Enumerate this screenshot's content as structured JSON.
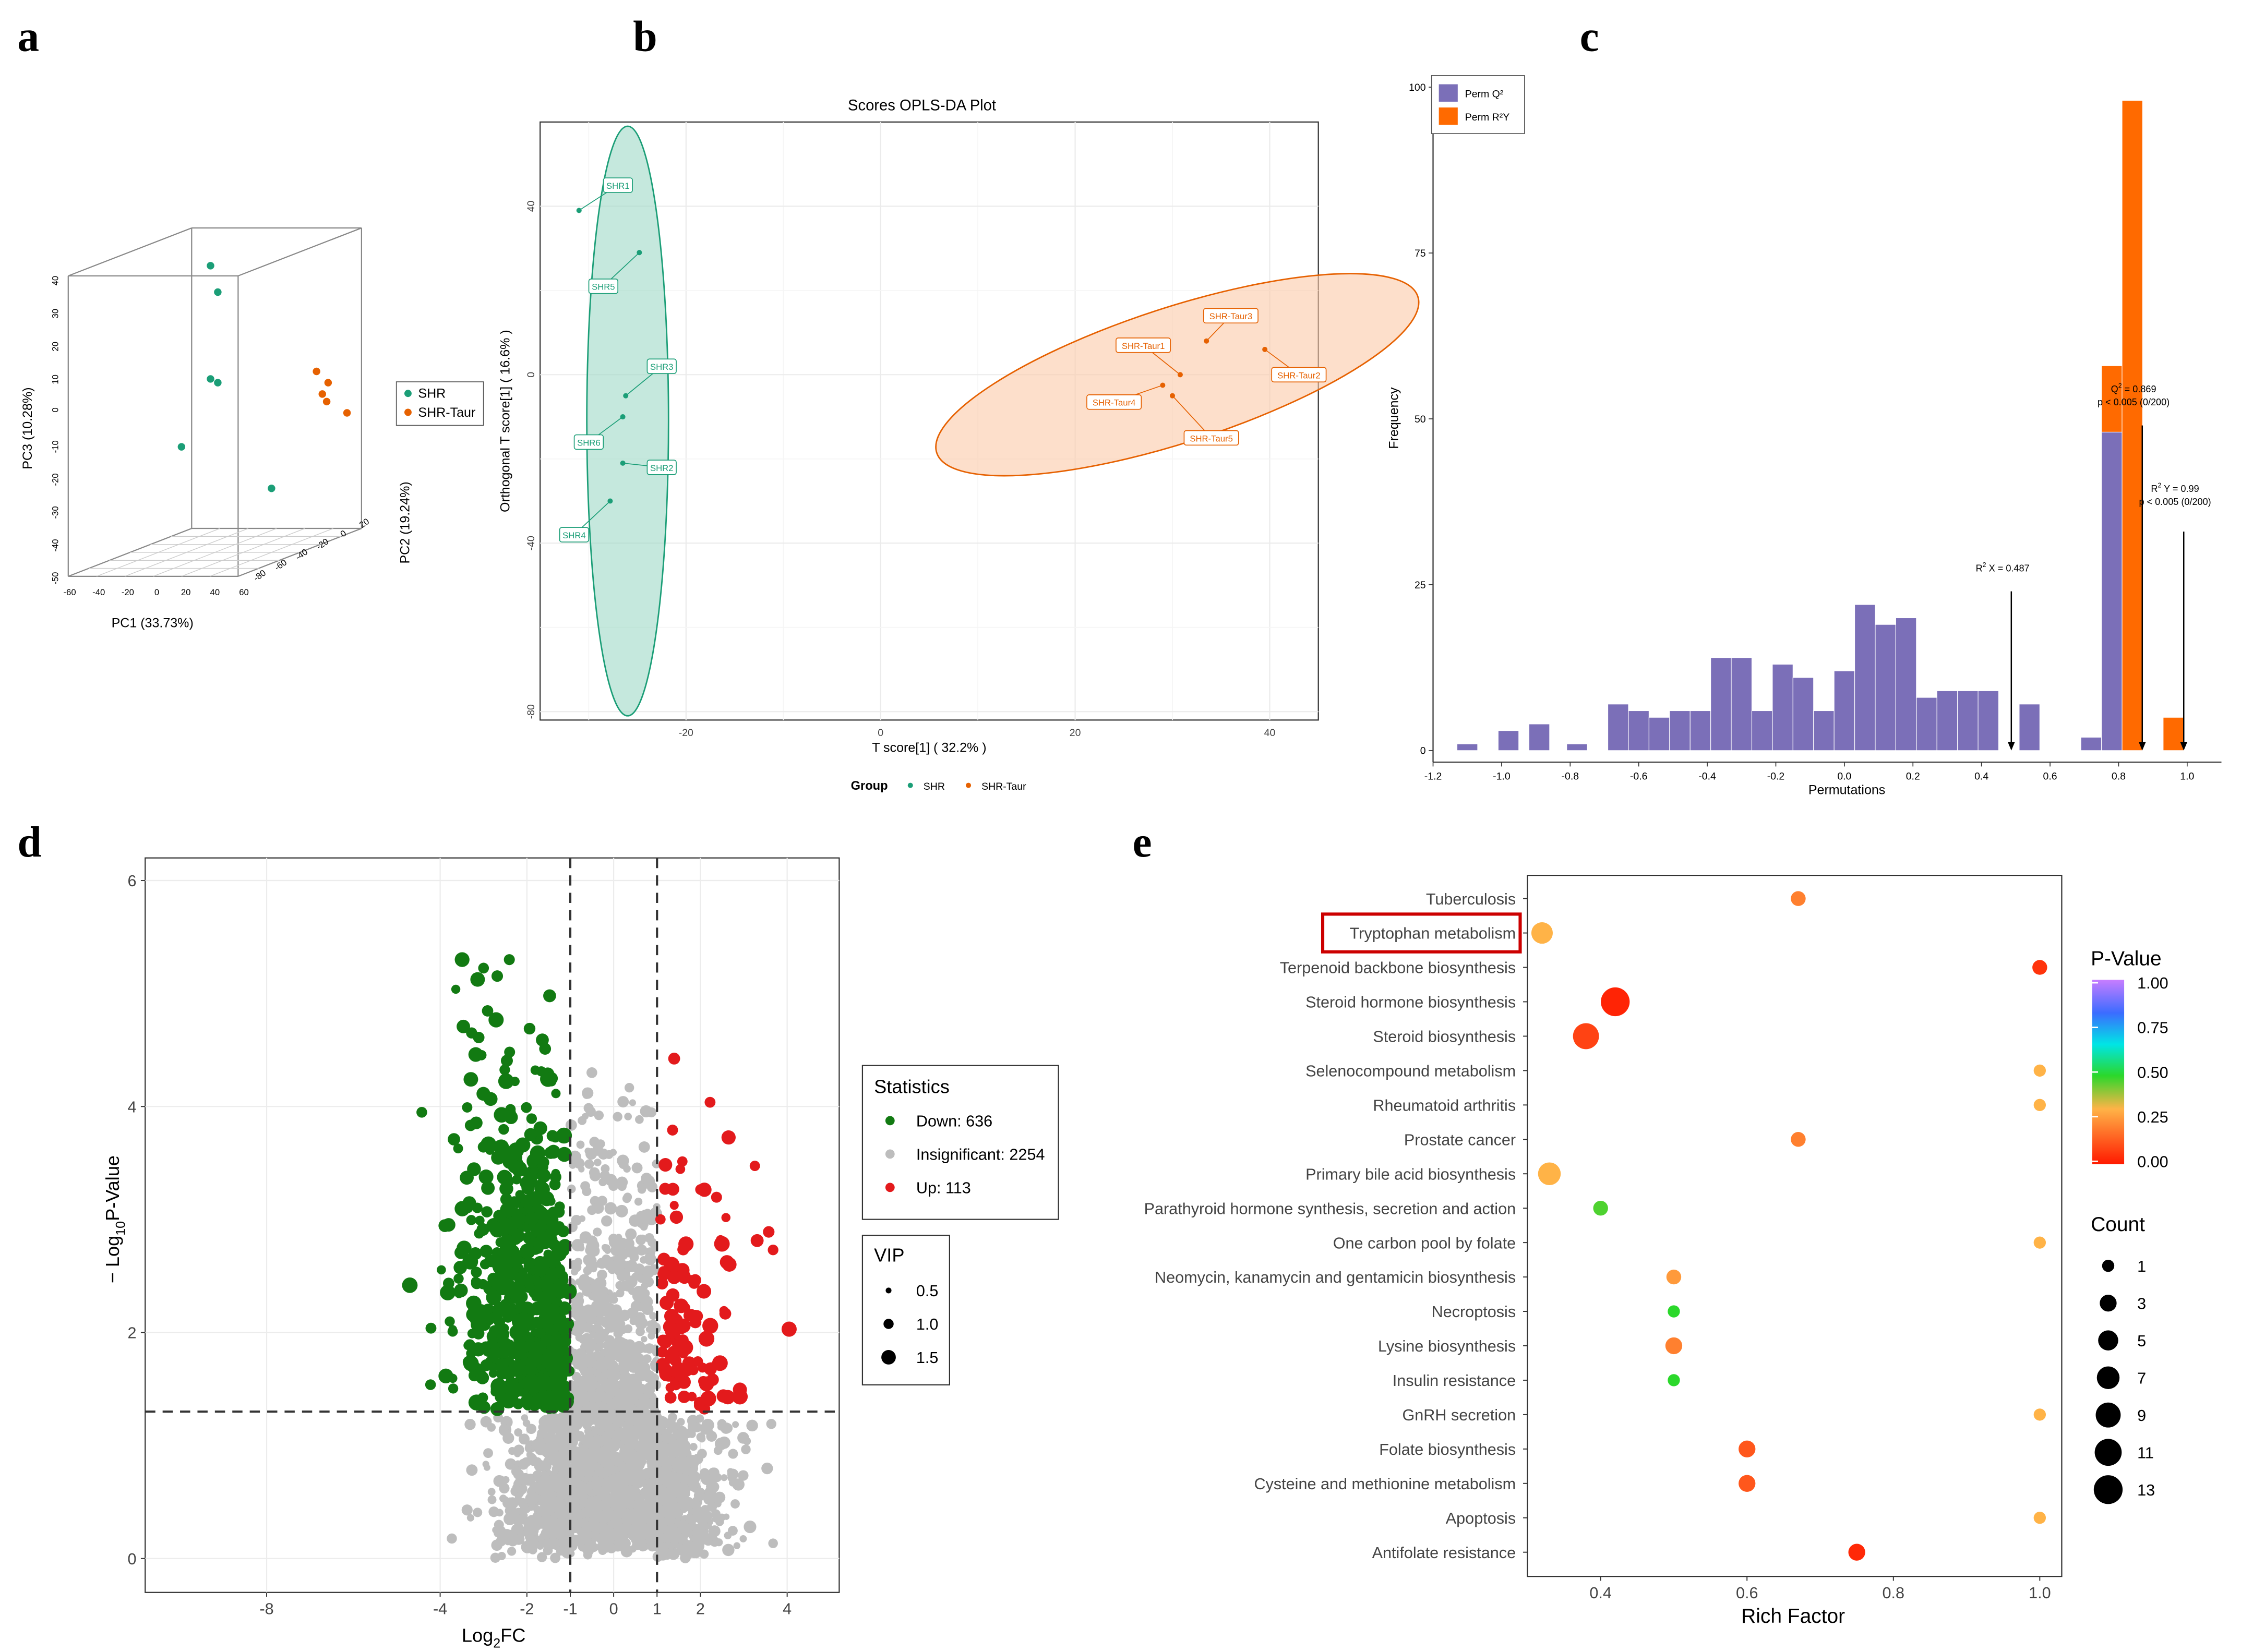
{
  "panel_labels": [
    "a",
    "b",
    "c",
    "d",
    "e"
  ],
  "chart_data": [
    {
      "id": "a",
      "type": "scatter",
      "subtype": "3d-pca",
      "xlabel": "PC1 (33.73%)",
      "ylabel": "PC3 (10.28%)",
      "zlabel": "PC2 (19.24%)",
      "x_ticks": [
        "-60",
        "-40",
        "-20",
        "0",
        "20",
        "40",
        "60"
      ],
      "y_ticks": [
        "40",
        "30",
        "20",
        "10",
        "0",
        "-10",
        "-20",
        "-30",
        "-40",
        "-50"
      ],
      "z_ticks": [
        "-80",
        "-60",
        "-40",
        "-20",
        "0",
        "20"
      ],
      "legend": [
        {
          "label": "SHR",
          "color": "#1b9e77"
        },
        {
          "label": "SHR-Taur",
          "color": "#e66101"
        }
      ],
      "series": [
        {
          "name": "SHR",
          "color": "#1b9e77",
          "points": [
            [
              145,
              45
            ],
            [
              150,
              38
            ],
            [
              145,
              15
            ],
            [
              150,
              14
            ],
            [
              125,
              -3
            ],
            [
              187,
              -14
            ]
          ]
        },
        {
          "name": "SHR-Taur",
          "color": "#e66101",
          "points": [
            [
              218,
              17
            ],
            [
              226,
              14
            ],
            [
              222,
              11
            ],
            [
              225,
              9
            ],
            [
              239,
              6
            ]
          ]
        }
      ]
    },
    {
      "id": "b",
      "type": "scatter",
      "title": "Scores OPLS-DA Plot",
      "xlabel": "T score[1] ( 32.2% )",
      "ylabel": "Orthogonal T score[1] ( 16.6% )",
      "xlim": [
        -35,
        45
      ],
      "ylim": [
        -82,
        60
      ],
      "x_ticks": [
        -20,
        0,
        20,
        40
      ],
      "y_ticks": [
        -80,
        -40,
        0,
        40
      ],
      "legend_title": "Group",
      "legend": [
        {
          "label": "SHR",
          "color": "#1b9e77"
        },
        {
          "label": "SHR-Taur",
          "color": "#e66101"
        }
      ],
      "series": [
        {
          "name": "SHR",
          "color": "#1b9e77",
          "ellipse": {
            "cx": -26,
            "cy": -11,
            "rx": 4.2,
            "ry": 70
          },
          "points": [
            {
              "x": -31,
              "y": 39,
              "label": "SHR1",
              "lx": -27,
              "ly": 45
            },
            {
              "x": -24.8,
              "y": 29,
              "label": "SHR5",
              "lx": -28.5,
              "ly": 21
            },
            {
              "x": -26.2,
              "y": -5,
              "label": "SHR3",
              "lx": -22.5,
              "ly": 2
            },
            {
              "x": -26.5,
              "y": -10,
              "label": "SHR6",
              "lx": -30,
              "ly": -16
            },
            {
              "x": -26.5,
              "y": -21,
              "label": "SHR2",
              "lx": -22.5,
              "ly": -22
            },
            {
              "x": -27.8,
              "y": -30,
              "label": "SHR4",
              "lx": -31.5,
              "ly": -38
            }
          ]
        },
        {
          "name": "SHR-Taur",
          "color": "#e66101",
          "ellipse": {
            "cx": 30.5,
            "cy": 0,
            "rx": 26,
            "ry": 16,
            "angle": -18
          },
          "points": [
            {
              "x": 33.5,
              "y": 8,
              "label": "SHR-Taur3",
              "lx": 36,
              "ly": 14
            },
            {
              "x": 39.5,
              "y": 6,
              "label": "SHR-Taur2",
              "lx": 43,
              "ly": 0
            },
            {
              "x": 30.8,
              "y": 0,
              "label": "SHR-Taur1",
              "lx": 27,
              "ly": 7
            },
            {
              "x": 29,
              "y": -2.5,
              "label": "SHR-Taur4",
              "lx": 24,
              "ly": -6.5
            },
            {
              "x": 30,
              "y": -5,
              "label": "SHR-Taur5",
              "lx": 34,
              "ly": -15
            }
          ]
        }
      ]
    },
    {
      "id": "c",
      "type": "bar",
      "subtype": "histogram",
      "xlabel": "Permutations",
      "ylabel": "Frequency",
      "xlim": [
        -1.2,
        1.1
      ],
      "ylim": [
        0,
        100
      ],
      "x_ticks": [
        "-1.2",
        "-1.0",
        "-0.8",
        "-0.6",
        "-0.4",
        "-0.2",
        "0.0",
        "0.2",
        "0.4",
        "0.6",
        "0.8",
        "1.0"
      ],
      "y_ticks": [
        "0",
        "25",
        "50",
        "75",
        "100"
      ],
      "legend": [
        {
          "label": "Perm Q²",
          "color": "#7b6fb8"
        },
        {
          "label": "Perm R²Y",
          "color": "#ff6a00"
        }
      ],
      "bin_width": 0.06,
      "series": [
        {
          "name": "Perm Q²",
          "color": "#7b6fb8",
          "bins": [
            [
              -1.1,
              1
            ],
            [
              -0.98,
              3
            ],
            [
              -0.89,
              4
            ],
            [
              -0.78,
              1
            ],
            [
              -0.66,
              7
            ],
            [
              -0.6,
              6
            ],
            [
              -0.54,
              5
            ],
            [
              -0.48,
              6
            ],
            [
              -0.42,
              6
            ],
            [
              -0.36,
              14
            ],
            [
              -0.3,
              14
            ],
            [
              -0.24,
              6
            ],
            [
              -0.18,
              13
            ],
            [
              -0.12,
              11
            ],
            [
              -0.06,
              6
            ],
            [
              0.0,
              12
            ],
            [
              0.06,
              22
            ],
            [
              0.12,
              19
            ],
            [
              0.18,
              20
            ],
            [
              0.24,
              8
            ],
            [
              0.3,
              9
            ],
            [
              0.36,
              9
            ],
            [
              0.42,
              9
            ],
            [
              0.48,
              0
            ],
            [
              0.54,
              7
            ],
            [
              0.72,
              2
            ],
            [
              0.78,
              48
            ],
            [
              0.84,
              0
            ],
            [
              0.96,
              0
            ]
          ]
        },
        {
          "name": "Perm R²Y",
          "color": "#ff6a00",
          "bins": [
            [
              0.72,
              1
            ],
            [
              0.78,
              58
            ],
            [
              0.84,
              98
            ],
            [
              0.96,
              5
            ]
          ]
        }
      ],
      "annotations": [
        {
          "text_a": "R",
          "text_b": "2",
          "text_c": " X = 0.487",
          "x": 0.487,
          "y_label": 27,
          "arrow_top": 24
        },
        {
          "text_a": "Q",
          "text_b": "2",
          "text_c": " = 0.869",
          "sub": "p < 0.005 (0/200)",
          "x": 0.869,
          "y_label": 54,
          "arrow_top": 49
        },
        {
          "text_a": "R",
          "text_b": "2",
          "text_c": " Y = 0.99",
          "sub": "p < 0.005 (0/200)",
          "x": 0.99,
          "y_label": 39,
          "arrow_top": 33
        }
      ]
    },
    {
      "id": "d",
      "type": "scatter",
      "subtype": "volcano",
      "xlabel_a": "Log",
      "xlabel_b": "2",
      "xlabel_c": "FC",
      "ylabel_a": "− Log",
      "ylabel_b": "10",
      "ylabel_c": "P-Value",
      "xlim": [
        -10.8,
        5.2
      ],
      "ylim": [
        -0.3,
        6.2
      ],
      "x_ticks": [
        -8,
        -4,
        -2,
        -1,
        0,
        1,
        2,
        4
      ],
      "y_ticks": [
        0,
        2,
        4,
        6
      ],
      "thresholds": {
        "x": [
          -1,
          1
        ],
        "y": 1.3
      },
      "legend_title": "Statistics",
      "legend": [
        {
          "label": "Down: 636",
          "color": "#127a12"
        },
        {
          "label": "Insignificant: 2254",
          "color": "#bdbdbd"
        },
        {
          "label": "Up: 113",
          "color": "#e31a1c"
        }
      ],
      "size_legend_title": "VIP",
      "size_legend": [
        "0.5",
        "1.0",
        "1.5"
      ],
      "counts": {
        "down": 636,
        "insignificant": 2254,
        "up": 113
      }
    },
    {
      "id": "e",
      "type": "scatter",
      "subtype": "kegg-bubble",
      "xlabel": "Rich Factor",
      "xlim": [
        0.3,
        1.03
      ],
      "x_ticks": [
        0.4,
        0.6,
        0.8,
        1.0
      ],
      "highlight": "Tryptophan metabolism",
      "color_legend_title": "P-Value",
      "color_legend_ticks": [
        "1.00",
        "0.75",
        "0.50",
        "0.25",
        "0.00"
      ],
      "size_legend_title": "Count",
      "size_legend_ticks": [
        "1",
        "3",
        "5",
        "7",
        "9",
        "11",
        "13"
      ],
      "pathways": [
        {
          "name": "Tuberculosis",
          "rich": 0.67,
          "count": 2,
          "p": 0.2
        },
        {
          "name": "Tryptophan metabolism",
          "rich": 0.32,
          "count": 6,
          "p": 0.3
        },
        {
          "name": "Terpenoid backbone biosynthesis",
          "rich": 1.0,
          "count": 2,
          "p": 0.05
        },
        {
          "name": "Steroid hormone biosynthesis",
          "rich": 0.42,
          "count": 13,
          "p": 0.02
        },
        {
          "name": "Steroid biosynthesis",
          "rich": 0.38,
          "count": 10,
          "p": 0.08
        },
        {
          "name": "Selenocompound metabolism",
          "rich": 1.0,
          "count": 1,
          "p": 0.3
        },
        {
          "name": "Rheumatoid arthritis",
          "rich": 1.0,
          "count": 1,
          "p": 0.3
        },
        {
          "name": "Prostate cancer",
          "rich": 0.67,
          "count": 2,
          "p": 0.2
        },
        {
          "name": "Primary bile acid biosynthesis",
          "rich": 0.33,
          "count": 7,
          "p": 0.3
        },
        {
          "name": "Parathyroid hormone synthesis, secretion and action",
          "rich": 0.4,
          "count": 2,
          "p": 0.45
        },
        {
          "name": "One carbon pool by folate",
          "rich": 1.0,
          "count": 1,
          "p": 0.3
        },
        {
          "name": "Neomycin, kanamycin and gentamicin biosynthesis",
          "rich": 0.5,
          "count": 2,
          "p": 0.25
        },
        {
          "name": "Necroptosis",
          "rich": 0.5,
          "count": 1,
          "p": 0.48
        },
        {
          "name": "Lysine biosynthesis",
          "rich": 0.5,
          "count": 3,
          "p": 0.2
        },
        {
          "name": "Insulin resistance",
          "rich": 0.5,
          "count": 1,
          "p": 0.48
        },
        {
          "name": "GnRH secretion",
          "rich": 1.0,
          "count": 1,
          "p": 0.3
        },
        {
          "name": "Folate biosynthesis",
          "rich": 0.6,
          "count": 3,
          "p": 0.12
        },
        {
          "name": "Cysteine and methionine metabolism",
          "rich": 0.6,
          "count": 3,
          "p": 0.12
        },
        {
          "name": "Apoptosis",
          "rich": 1.0,
          "count": 1,
          "p": 0.3
        },
        {
          "name": "Antifolate resistance",
          "rich": 0.75,
          "count": 3,
          "p": 0.03
        }
      ]
    }
  ]
}
